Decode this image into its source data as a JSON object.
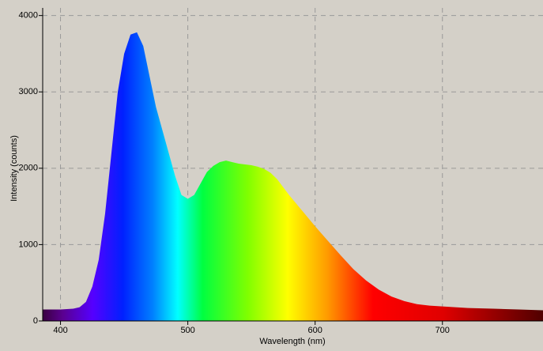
{
  "chart_data": {
    "type": "area",
    "xlabel": "Wavelength (nm)",
    "ylabel": "Intensity (counts)",
    "x": [
      386,
      400,
      410,
      415,
      420,
      425,
      430,
      435,
      440,
      445,
      450,
      455,
      460,
      465,
      470,
      475,
      480,
      485,
      490,
      495,
      500,
      505,
      510,
      515,
      520,
      525,
      530,
      535,
      540,
      545,
      550,
      555,
      560,
      565,
      570,
      575,
      580,
      590,
      600,
      610,
      620,
      630,
      640,
      650,
      660,
      670,
      680,
      690,
      700,
      720,
      740,
      760,
      779
    ],
    "values": [
      150,
      150,
      160,
      180,
      250,
      450,
      800,
      1400,
      2200,
      3000,
      3500,
      3750,
      3780,
      3600,
      3200,
      2800,
      2500,
      2200,
      1900,
      1650,
      1600,
      1650,
      1800,
      1950,
      2030,
      2080,
      2100,
      2080,
      2060,
      2050,
      2040,
      2020,
      1990,
      1940,
      1860,
      1750,
      1640,
      1440,
      1240,
      1050,
      860,
      680,
      530,
      410,
      320,
      260,
      220,
      200,
      190,
      170,
      160,
      150,
      140
    ],
    "xlim": [
      386,
      779
    ],
    "ylim": [
      0,
      4100
    ],
    "xticks": [
      400,
      500,
      600,
      700
    ],
    "yticks": [
      0,
      1000,
      2000,
      3000,
      4000
    ],
    "grid": true
  }
}
